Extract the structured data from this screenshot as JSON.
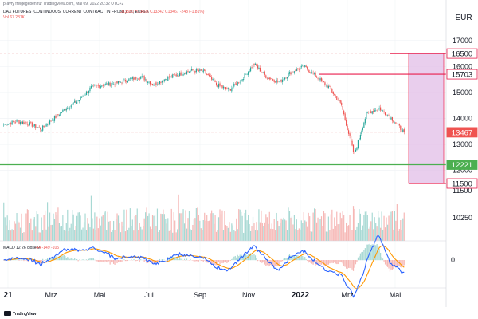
{
  "header": {
    "published": "p-avry freigegeben für TradingView.com, Mai 09, 2022 20:32 UTC+2",
    "instrument": "DAX FUTURES (CONTINUOUS: CURRENT CONTRACT IN FRONT), 1T, EUREX",
    "ohlc": "O13580 H13695 C13342 C13467 -248 (-1.81%)",
    "volume": "Vol 67.281K"
  },
  "footer": {
    "brand": "TradingView"
  },
  "colors": {
    "up": "#26a69a",
    "down": "#ef5350",
    "vol_up": "#a8d9d4",
    "vol_down": "#f6b7b5",
    "resistance": "#e91e4d",
    "support": "#4caf50",
    "zone": "#e1bee7",
    "macd": "#2962ff",
    "signal": "#ff9800"
  },
  "chart_data": {
    "type": "candlestick",
    "currency": "EUR",
    "x_axis": [
      "21",
      "Mrz",
      "Mai",
      "Jul",
      "Sep",
      "Nov",
      "2022",
      "Mrz",
      "Mai"
    ],
    "x_axis_bold": [
      "21",
      "2022"
    ],
    "price_axis": [
      "17000",
      "16000",
      "15000",
      "14000",
      "13000",
      "12000"
    ],
    "volume_axis": [
      "11500",
      "10250"
    ],
    "macd_axis": [
      "0"
    ],
    "price_ylim": [
      11500,
      17700
    ],
    "price_series": [
      {
        "date": "2021-01",
        "value": 13750
      },
      {
        "date": "2021-01b",
        "value": 13900
      },
      {
        "date": "2021-02",
        "value": 13800
      },
      {
        "date": "2021-02b",
        "value": 13600
      },
      {
        "date": "2021-03",
        "value": 14000
      },
      {
        "date": "2021-03b",
        "value": 14400
      },
      {
        "date": "2021-04",
        "value": 14700
      },
      {
        "date": "2021-04b",
        "value": 15200
      },
      {
        "date": "2021-05",
        "value": 15300
      },
      {
        "date": "2021-05b",
        "value": 15350
      },
      {
        "date": "2021-06",
        "value": 15500
      },
      {
        "date": "2021-06b",
        "value": 15600
      },
      {
        "date": "2021-07",
        "value": 15300
      },
      {
        "date": "2021-07b",
        "value": 15550
      },
      {
        "date": "2021-08",
        "value": 15700
      },
      {
        "date": "2021-08b",
        "value": 15850
      },
      {
        "date": "2021-09",
        "value": 15800
      },
      {
        "date": "2021-09b",
        "value": 15300
      },
      {
        "date": "2021-10",
        "value": 15100
      },
      {
        "date": "2021-10b",
        "value": 15500
      },
      {
        "date": "2021-11",
        "value": 16100
      },
      {
        "date": "2021-11b",
        "value": 15600
      },
      {
        "date": "2021-12",
        "value": 15400
      },
      {
        "date": "2021-12b",
        "value": 15800
      },
      {
        "date": "2022-01",
        "value": 16000
      },
      {
        "date": "2022-01b",
        "value": 15600
      },
      {
        "date": "2022-02",
        "value": 15200
      },
      {
        "date": "2022-02b",
        "value": 14500
      },
      {
        "date": "2022-03",
        "value": 12600
      },
      {
        "date": "2022-03b",
        "value": 14200
      },
      {
        "date": "2022-04",
        "value": 14400
      },
      {
        "date": "2022-04b",
        "value": 14000
      },
      {
        "date": "2022-05",
        "value": 13467
      }
    ],
    "price_labels": [
      {
        "text": "16500",
        "value": 16500,
        "kind": "resistance"
      },
      {
        "text": "15703",
        "value": 15703,
        "kind": "resistance"
      },
      {
        "text": "13467",
        "value": 13467,
        "kind": "last"
      },
      {
        "text": "12221",
        "value": 12221,
        "kind": "support"
      },
      {
        "text": "11500",
        "value": 11500,
        "kind": "resistance"
      }
    ],
    "levels": [
      {
        "name": "resistance-16500",
        "value": 16500
      },
      {
        "name": "resistance-15703",
        "value": 15703
      },
      {
        "name": "support-12221",
        "value": 12221
      },
      {
        "name": "level-11500",
        "value": 11500
      }
    ],
    "zone": {
      "from": 11500,
      "to": 16500
    },
    "macd_label": "MACD 12 26 close 9",
    "macd_values": "-44 -149 -105",
    "legend": "none",
    "grid": true
  }
}
